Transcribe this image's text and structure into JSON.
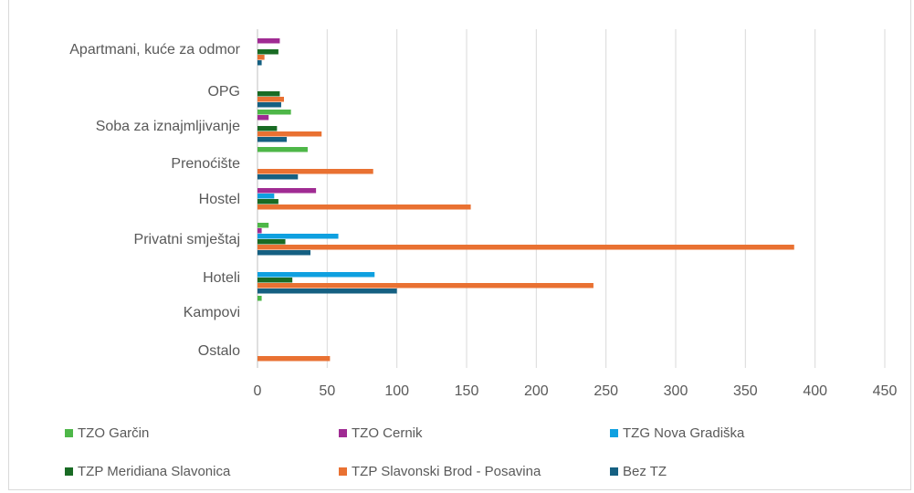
{
  "chart_data": {
    "type": "bar",
    "orientation": "horizontal",
    "title": "",
    "xlabel": "",
    "ylabel": "",
    "xlim": [
      0,
      450
    ],
    "x_ticks": [
      0,
      50,
      100,
      150,
      200,
      250,
      300,
      350,
      400,
      450
    ],
    "grid": "vertical",
    "legend_position": "bottom",
    "categories": [
      "Apartmani, kuće za odmor",
      "OPG",
      "Soba za iznajmljivanje",
      "Prenoćište",
      "Hostel",
      "Privatni smještaj",
      "Hoteli",
      "Kampovi",
      "Ostalo"
    ],
    "series": [
      {
        "name": "TZO Garčin",
        "color": "#4eb748",
        "values": [
          0,
          0,
          24,
          36,
          0,
          8,
          0,
          3,
          0
        ]
      },
      {
        "name": "TZO Cernik",
        "color": "#a02b93",
        "values": [
          16,
          0,
          8,
          0,
          42,
          3,
          0,
          0,
          0
        ]
      },
      {
        "name": "TZG Nova Gradiška",
        "color": "#0fa0e0",
        "values": [
          0,
          0,
          0,
          0,
          12,
          58,
          84,
          0,
          0
        ]
      },
      {
        "name": "TZP Meridiana Slavonica",
        "color": "#196b24",
        "values": [
          15,
          16,
          14,
          0,
          15,
          20,
          25,
          0,
          0
        ]
      },
      {
        "name": "TZP Slavonski Brod - Posavina",
        "color": "#e97132",
        "values": [
          5,
          19,
          46,
          83,
          153,
          385,
          241,
          0,
          52
        ]
      },
      {
        "name": "Bez TZ",
        "color": "#156082",
        "values": [
          3,
          17,
          21,
          29,
          0,
          38,
          100,
          0,
          0
        ]
      }
    ]
  }
}
